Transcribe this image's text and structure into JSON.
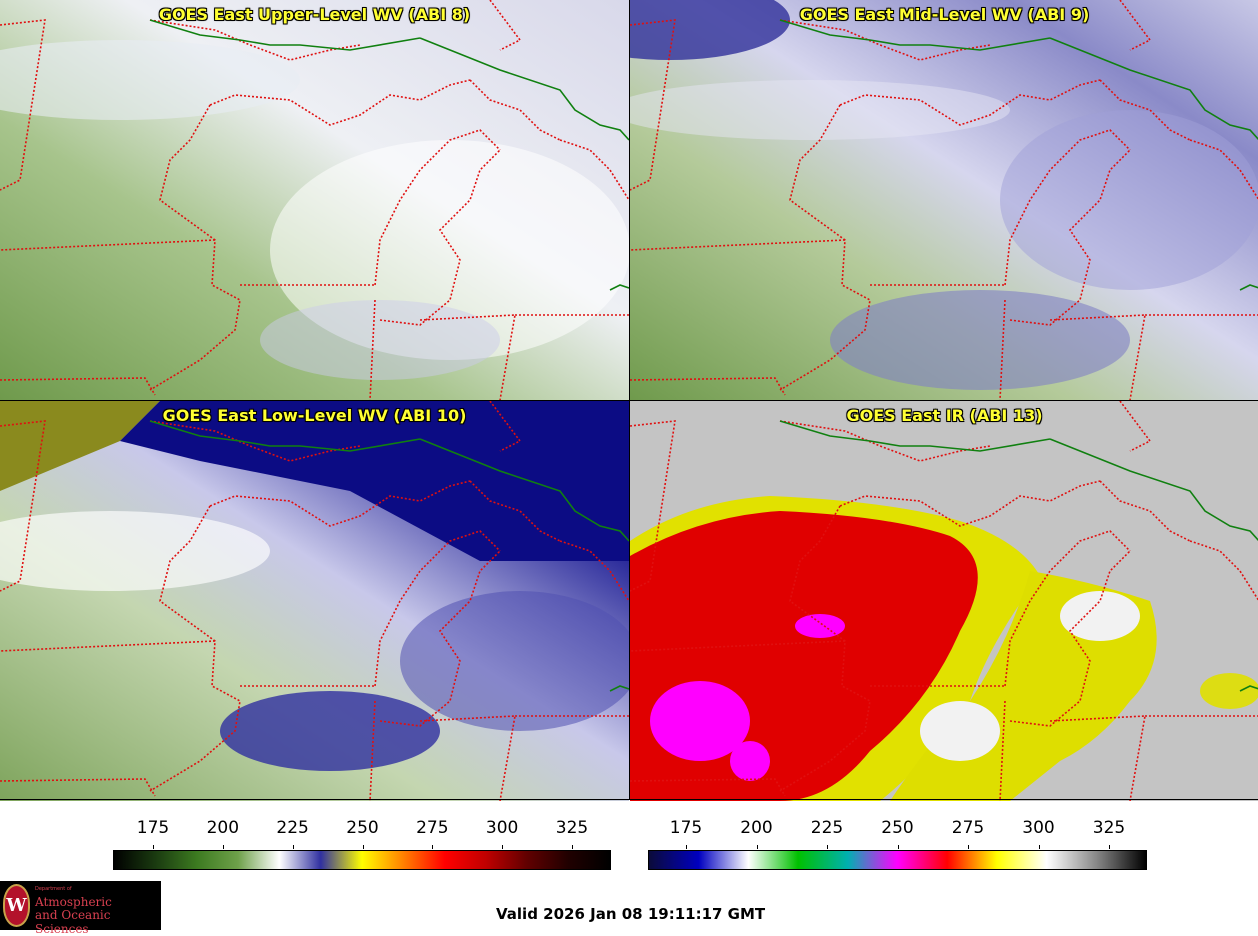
{
  "panels": [
    {
      "id": "p1",
      "title": "GOES East Upper-Level WV (ABI 8)",
      "style": "wv-upper"
    },
    {
      "id": "p2",
      "title": "GOES East Mid-Level WV (ABI 9)",
      "style": "wv-mid"
    },
    {
      "id": "p3",
      "title": "GOES East Low-Level WV (ABI 10)",
      "style": "wv-low"
    },
    {
      "id": "p4",
      "title": "GOES East IR (ABI 13)",
      "style": "ir"
    }
  ],
  "colorbar_left": {
    "ticks": [
      "175",
      "200",
      "225",
      "250",
      "275",
      "300",
      "325"
    ],
    "colors": [
      "#000000",
      "#1a3a10",
      "#3c7a20",
      "#6ea04a",
      "#ffffff",
      "#3030a0",
      "#ffff00",
      "#ff8000",
      "#ff0000",
      "#c00000",
      "#600000",
      "#200000",
      "#000000"
    ]
  },
  "colorbar_right": {
    "ticks": [
      "175",
      "200",
      "225",
      "250",
      "275",
      "300",
      "325"
    ],
    "colors": [
      "#0b0b3a",
      "#0000c0",
      "#ffffff",
      "#00c000",
      "#00b0b0",
      "#ff00ff",
      "#ff0000",
      "#ffff00",
      "#ffffff",
      "#888888",
      "#000000"
    ]
  },
  "logo": {
    "dept": "Department of",
    "line1": "Atmospheric",
    "line2": "and Oceanic Sciences",
    "seal": "W"
  },
  "valid_text": "Valid 2026 Jan 08 19:11:17 GMT"
}
